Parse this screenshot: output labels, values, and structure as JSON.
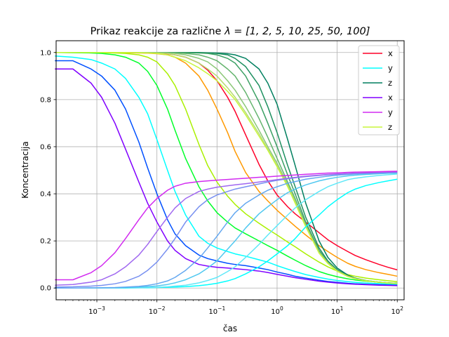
{
  "chart_data": {
    "type": "line",
    "title": "Prikaz reakcije za različne λ = [1, 2, 5, 10, 25, 50, 100]",
    "title_plain": "Prikaz reakcije za različne ",
    "title_math": "λ = [1, 2, 5, 10, 25, 50, 100]",
    "xlabel": "čas",
    "ylabel": "Koncentracija",
    "x_scale": "log",
    "xlim": [
      0.00021,
      130
    ],
    "ylim": [
      -0.05,
      1.05
    ],
    "grid": true,
    "legend_position": "top-right",
    "x_ticks": [
      {
        "value": 0.001,
        "base": "10",
        "exp": "−3"
      },
      {
        "value": 0.01,
        "base": "10",
        "exp": "−2"
      },
      {
        "value": 0.1,
        "base": "10",
        "exp": "−1"
      },
      {
        "value": 1,
        "base": "10",
        "exp": "0"
      },
      {
        "value": 10,
        "base": "10",
        "exp": "1"
      },
      {
        "value": 100,
        "base": "10",
        "exp": "2"
      }
    ],
    "y_ticks": [
      {
        "value": 0.0,
        "label": "0.0"
      },
      {
        "value": 0.2,
        "label": "0.2"
      },
      {
        "value": 0.4,
        "label": "0.4"
      },
      {
        "value": 0.6,
        "label": "0.6"
      },
      {
        "value": 0.8,
        "label": "0.8"
      },
      {
        "value": 1.0,
        "label": "1.0"
      }
    ],
    "x": [
      0.0002,
      0.0004,
      0.0008,
      0.0012,
      0.002,
      0.003,
      0.005,
      0.007,
      0.01,
      0.015,
      0.02,
      0.03,
      0.05,
      0.07,
      0.1,
      0.15,
      0.2,
      0.3,
      0.5,
      0.7,
      1,
      1.5,
      2,
      3,
      5,
      7,
      10,
      15,
      20,
      30,
      50,
      70,
      100
    ],
    "legend": [
      {
        "name": "x",
        "color": "#ff0029"
      },
      {
        "name": "y",
        "color": "#00ffff"
      },
      {
        "name": "z",
        "color": "#007f5f"
      },
      {
        "name": "x",
        "color": "#8000ff"
      },
      {
        "name": "y",
        "color": "#d22bf0"
      },
      {
        "name": "z",
        "color": "#c8f53c"
      }
    ],
    "series": [
      {
        "name": "x",
        "color": "#ff0029",
        "values": [
          1.0,
          1.0,
          1.0,
          1.0,
          1.0,
          0.999,
          0.999,
          0.998,
          0.997,
          0.995,
          0.99,
          0.98,
          0.955,
          0.925,
          0.88,
          0.81,
          0.75,
          0.65,
          0.525,
          0.455,
          0.395,
          0.345,
          0.315,
          0.28,
          0.235,
          0.205,
          0.18,
          0.155,
          0.138,
          0.12,
          0.1,
          0.088,
          0.077
        ]
      },
      {
        "name": "",
        "color": "#ff9900",
        "values": [
          1.0,
          1.0,
          1.0,
          1.0,
          1.0,
          0.999,
          0.998,
          0.997,
          0.995,
          0.99,
          0.98,
          0.955,
          0.9,
          0.84,
          0.76,
          0.66,
          0.58,
          0.49,
          0.41,
          0.37,
          0.33,
          0.29,
          0.262,
          0.225,
          0.18,
          0.155,
          0.13,
          0.105,
          0.092,
          0.078,
          0.065,
          0.058,
          0.05
        ]
      },
      {
        "name": "",
        "color": "#aaf000",
        "values": [
          1.0,
          1.0,
          1.0,
          0.999,
          0.998,
          0.996,
          0.99,
          0.98,
          0.96,
          0.91,
          0.86,
          0.76,
          0.61,
          0.52,
          0.45,
          0.39,
          0.355,
          0.315,
          0.275,
          0.25,
          0.225,
          0.195,
          0.175,
          0.145,
          0.11,
          0.09,
          0.072,
          0.057,
          0.05,
          0.042,
          0.035,
          0.031,
          0.027
        ]
      },
      {
        "name": "",
        "color": "#00ff2a",
        "values": [
          1.0,
          0.999,
          0.998,
          0.996,
          0.99,
          0.98,
          0.955,
          0.92,
          0.86,
          0.76,
          0.67,
          0.55,
          0.43,
          0.37,
          0.32,
          0.28,
          0.255,
          0.23,
          0.2,
          0.18,
          0.16,
          0.135,
          0.118,
          0.095,
          0.07,
          0.058,
          0.048,
          0.039,
          0.034,
          0.029,
          0.025,
          0.022,
          0.02
        ]
      },
      {
        "name": "",
        "color": "#00ffff",
        "values": [
          0.985,
          0.98,
          0.97,
          0.955,
          0.93,
          0.89,
          0.81,
          0.74,
          0.63,
          0.5,
          0.41,
          0.31,
          0.22,
          0.19,
          0.17,
          0.155,
          0.145,
          0.135,
          0.12,
          0.11,
          0.095,
          0.08,
          0.07,
          0.057,
          0.045,
          0.038,
          0.032,
          0.027,
          0.024,
          0.021,
          0.019,
          0.017,
          0.015
        ]
      },
      {
        "name": "",
        "color": "#0050ff",
        "values": [
          0.965,
          0.965,
          0.93,
          0.9,
          0.84,
          0.76,
          0.62,
          0.51,
          0.4,
          0.29,
          0.23,
          0.18,
          0.14,
          0.125,
          0.115,
          0.105,
          0.1,
          0.095,
          0.085,
          0.078,
          0.068,
          0.058,
          0.05,
          0.042,
          0.033,
          0.028,
          0.024,
          0.02,
          0.018,
          0.016,
          0.014,
          0.013,
          0.012
        ]
      },
      {
        "name": "x",
        "color": "#8000ff",
        "values": [
          0.93,
          0.93,
          0.87,
          0.81,
          0.7,
          0.59,
          0.45,
          0.36,
          0.28,
          0.2,
          0.16,
          0.125,
          0.1,
          0.093,
          0.088,
          0.085,
          0.082,
          0.078,
          0.072,
          0.066,
          0.058,
          0.05,
          0.044,
          0.037,
          0.029,
          0.025,
          0.021,
          0.018,
          0.016,
          0.014,
          0.012,
          0.011,
          0.01
        ]
      },
      {
        "name": "z",
        "color": "#007f5f",
        "values": [
          1.0,
          1.0,
          1.0,
          1.0,
          1.0,
          1.0,
          1.0,
          1.0,
          1.0,
          1.0,
          1.0,
          1.0,
          1.0,
          0.999,
          0.998,
          0.995,
          0.99,
          0.975,
          0.93,
          0.87,
          0.78,
          0.63,
          0.52,
          0.36,
          0.2,
          0.13,
          0.085,
          0.055,
          0.042,
          0.032,
          0.025,
          0.022,
          0.02
        ]
      },
      {
        "name": "",
        "color": "#1e9060",
        "values": [
          1.0,
          1.0,
          1.0,
          1.0,
          1.0,
          1.0,
          1.0,
          1.0,
          1.0,
          1.0,
          1.0,
          1.0,
          0.999,
          0.998,
          0.996,
          0.99,
          0.975,
          0.94,
          0.86,
          0.77,
          0.66,
          0.52,
          0.43,
          0.3,
          0.17,
          0.115,
          0.078,
          0.052,
          0.04,
          0.031,
          0.024,
          0.021,
          0.019
        ]
      },
      {
        "name": "",
        "color": "#3ca064",
        "values": [
          1.0,
          1.0,
          1.0,
          1.0,
          1.0,
          1.0,
          1.0,
          1.0,
          1.0,
          1.0,
          1.0,
          0.999,
          0.998,
          0.996,
          0.99,
          0.975,
          0.955,
          0.9,
          0.79,
          0.7,
          0.6,
          0.48,
          0.4,
          0.28,
          0.16,
          0.11,
          0.075,
          0.051,
          0.04,
          0.031,
          0.024,
          0.021,
          0.019
        ]
      },
      {
        "name": "",
        "color": "#64b46e",
        "values": [
          1.0,
          1.0,
          1.0,
          1.0,
          1.0,
          1.0,
          1.0,
          1.0,
          1.0,
          0.999,
          0.998,
          0.996,
          0.99,
          0.98,
          0.965,
          0.93,
          0.9,
          0.83,
          0.72,
          0.64,
          0.55,
          0.45,
          0.38,
          0.27,
          0.155,
          0.108,
          0.074,
          0.05,
          0.04,
          0.031,
          0.024,
          0.021,
          0.019
        ]
      },
      {
        "name": "",
        "color": "#8cc878",
        "values": [
          1.0,
          1.0,
          1.0,
          1.0,
          1.0,
          1.0,
          1.0,
          1.0,
          0.999,
          0.998,
          0.996,
          0.99,
          0.975,
          0.96,
          0.93,
          0.88,
          0.84,
          0.77,
          0.67,
          0.6,
          0.53,
          0.44,
          0.37,
          0.265,
          0.152,
          0.106,
          0.073,
          0.05,
          0.04,
          0.031,
          0.024,
          0.021,
          0.019
        ]
      },
      {
        "name": "",
        "color": "#b4dc6e",
        "values": [
          1.0,
          1.0,
          1.0,
          1.0,
          1.0,
          1.0,
          1.0,
          0.999,
          0.998,
          0.996,
          0.99,
          0.98,
          0.955,
          0.93,
          0.9,
          0.85,
          0.81,
          0.745,
          0.655,
          0.59,
          0.52,
          0.435,
          0.365,
          0.262,
          0.15,
          0.105,
          0.072,
          0.05,
          0.04,
          0.031,
          0.024,
          0.021,
          0.019
        ]
      },
      {
        "name": "z",
        "color": "#c8f53c",
        "values": [
          1.0,
          1.0,
          1.0,
          1.0,
          1.0,
          1.0,
          0.999,
          0.998,
          0.996,
          0.99,
          0.98,
          0.965,
          0.935,
          0.91,
          0.88,
          0.835,
          0.8,
          0.735,
          0.645,
          0.585,
          0.515,
          0.43,
          0.36,
          0.26,
          0.148,
          0.104,
          0.071,
          0.049,
          0.039,
          0.031,
          0.024,
          0.021,
          0.019
        ]
      },
      {
        "name": "y",
        "color": "#00ffff",
        "values": [
          0.0,
          0.0,
          0.0,
          0.0,
          0.0,
          0.0,
          0.001,
          0.001,
          0.002,
          0.003,
          0.004,
          0.006,
          0.01,
          0.014,
          0.02,
          0.03,
          0.04,
          0.06,
          0.09,
          0.115,
          0.145,
          0.18,
          0.21,
          0.26,
          0.31,
          0.345,
          0.375,
          0.405,
          0.42,
          0.435,
          0.448,
          0.455,
          0.462
        ]
      },
      {
        "name": "",
        "color": "#60e8f8",
        "values": [
          0.0,
          0.0,
          0.0,
          0.0,
          0.0,
          0.001,
          0.001,
          0.002,
          0.003,
          0.005,
          0.008,
          0.012,
          0.022,
          0.032,
          0.045,
          0.07,
          0.09,
          0.13,
          0.185,
          0.225,
          0.265,
          0.31,
          0.34,
          0.375,
          0.41,
          0.43,
          0.445,
          0.46,
          0.466,
          0.472,
          0.478,
          0.481,
          0.484
        ]
      },
      {
        "name": "",
        "color": "#50c8f0",
        "values": [
          0.0,
          0.0,
          0.0,
          0.001,
          0.001,
          0.002,
          0.004,
          0.006,
          0.009,
          0.015,
          0.022,
          0.035,
          0.06,
          0.085,
          0.115,
          0.165,
          0.2,
          0.255,
          0.315,
          0.345,
          0.375,
          0.405,
          0.42,
          0.438,
          0.455,
          0.463,
          0.47,
          0.476,
          0.479,
          0.482,
          0.485,
          0.487,
          0.488
        ]
      },
      {
        "name": "",
        "color": "#64a8f0",
        "values": [
          0.0,
          0.0,
          0.001,
          0.001,
          0.002,
          0.004,
          0.007,
          0.011,
          0.018,
          0.03,
          0.045,
          0.075,
          0.125,
          0.17,
          0.22,
          0.28,
          0.32,
          0.36,
          0.395,
          0.415,
          0.43,
          0.445,
          0.452,
          0.462,
          0.47,
          0.475,
          0.479,
          0.482,
          0.484,
          0.486,
          0.488,
          0.489,
          0.49
        ]
      },
      {
        "name": "",
        "color": "#7890f0",
        "values": [
          0.004,
          0.005,
          0.008,
          0.011,
          0.018,
          0.028,
          0.05,
          0.075,
          0.11,
          0.165,
          0.21,
          0.28,
          0.345,
          0.375,
          0.395,
          0.41,
          0.42,
          0.43,
          0.442,
          0.45,
          0.457,
          0.464,
          0.468,
          0.473,
          0.478,
          0.481,
          0.483,
          0.486,
          0.487,
          0.488,
          0.49,
          0.491,
          0.492
        ]
      },
      {
        "name": "",
        "color": "#a068f0",
        "values": [
          0.012,
          0.015,
          0.025,
          0.035,
          0.06,
          0.09,
          0.14,
          0.185,
          0.24,
          0.3,
          0.34,
          0.38,
          0.41,
          0.42,
          0.428,
          0.434,
          0.438,
          0.443,
          0.45,
          0.455,
          0.46,
          0.466,
          0.47,
          0.475,
          0.479,
          0.482,
          0.484,
          0.486,
          0.488,
          0.489,
          0.491,
          0.492,
          0.493
        ]
      },
      {
        "name": "y",
        "color": "#d22bf0",
        "values": [
          0.035,
          0.035,
          0.065,
          0.095,
          0.15,
          0.21,
          0.29,
          0.34,
          0.38,
          0.415,
          0.432,
          0.445,
          0.452,
          0.455,
          0.458,
          0.461,
          0.463,
          0.466,
          0.47,
          0.472,
          0.475,
          0.478,
          0.48,
          0.483,
          0.486,
          0.488,
          0.489,
          0.491,
          0.492,
          0.493,
          0.494,
          0.495,
          0.496
        ]
      }
    ]
  }
}
